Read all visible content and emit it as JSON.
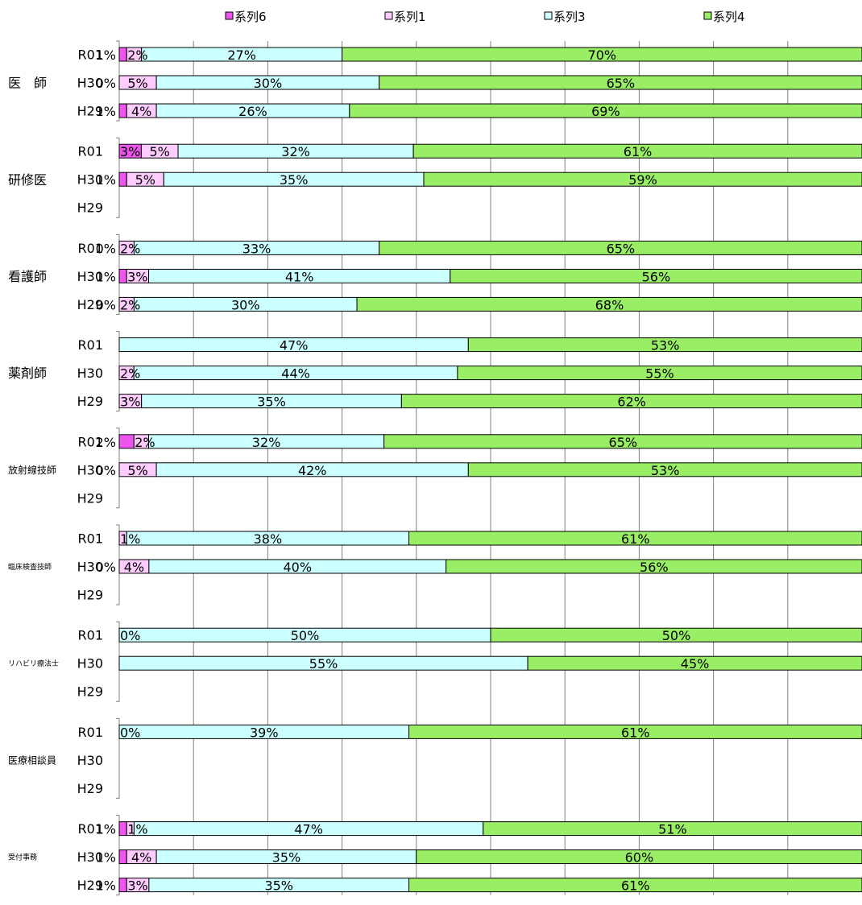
{
  "chart_data": {
    "type": "bar",
    "orientation": "horizontal",
    "stacked": "percent",
    "grid": true,
    "legend_position": "top",
    "series_legend": [
      {
        "key": "s6",
        "name": "系列6",
        "color": "#ee55ee"
      },
      {
        "key": "s1",
        "name": "系列1",
        "color": "#ffccff"
      },
      {
        "key": "s3",
        "name": "系列3",
        "color": "#ccffff"
      },
      {
        "key": "s4",
        "name": "系列4",
        "color": "#99ee66"
      }
    ],
    "groups": [
      {
        "label": "医　師",
        "rows": [
          {
            "label": "R01",
            "values": [
              1,
              2,
              27,
              70
            ],
            "labels": [
              "1%",
              "2%",
              "27%",
              "70%"
            ]
          },
          {
            "label": "H30",
            "values": [
              0,
              5,
              30,
              65
            ],
            "labels": [
              "0%",
              "5%",
              "30%",
              "65%"
            ]
          },
          {
            "label": "H29",
            "values": [
              1,
              4,
              26,
              69
            ],
            "labels": [
              "1%",
              "4%",
              "26%",
              "69%"
            ]
          }
        ]
      },
      {
        "label": "研修医",
        "rows": [
          {
            "label": "R01",
            "values": [
              3,
              5,
              32,
              61
            ],
            "labels": [
              "3%",
              "5%",
              "32%",
              "61%"
            ]
          },
          {
            "label": "H30",
            "values": [
              1,
              5,
              35,
              59
            ],
            "labels": [
              "1%",
              "5%",
              "35%",
              "59%"
            ]
          },
          {
            "label": "H29",
            "values": null,
            "labels": null
          }
        ]
      },
      {
        "label": "看護師",
        "rows": [
          {
            "label": "R01",
            "values": [
              0,
              2,
              33,
              65
            ],
            "labels": [
              "0%",
              "2%",
              "33%",
              "65%"
            ]
          },
          {
            "label": "H30",
            "values": [
              1,
              3,
              41,
              56
            ],
            "labels": [
              "1%",
              "3%",
              "41%",
              "56%"
            ]
          },
          {
            "label": "H29",
            "values": [
              0,
              2,
              30,
              68
            ],
            "labels": [
              "0%",
              "2%",
              "30%",
              "68%"
            ]
          }
        ]
      },
      {
        "label": "薬剤師",
        "rows": [
          {
            "label": "R01",
            "values": [
              0,
              0,
              47,
              53
            ],
            "labels": [
              "",
              "",
              "47%",
              "53%"
            ]
          },
          {
            "label": "H30",
            "values": [
              0,
              2,
              44,
              55
            ],
            "labels": [
              "",
              "2%",
              "44%",
              "55%"
            ]
          },
          {
            "label": "H29",
            "values": [
              0,
              3,
              35,
              62
            ],
            "labels": [
              "",
              "3%",
              "35%",
              "62%"
            ]
          }
        ]
      },
      {
        "label": "放射線技師",
        "rows": [
          {
            "label": "R01",
            "values": [
              2,
              2,
              32,
              65
            ],
            "labels": [
              "2%",
              "2%",
              "32%",
              "65%"
            ]
          },
          {
            "label": "H30",
            "values": [
              0,
              5,
              42,
              53
            ],
            "labels": [
              "0%",
              "5%",
              "42%",
              "53%"
            ]
          },
          {
            "label": "H29",
            "values": null,
            "labels": null
          }
        ]
      },
      {
        "label": "臨床検査技師",
        "rows": [
          {
            "label": "R01",
            "values": [
              0,
              1,
              38,
              61
            ],
            "labels": [
              "",
              "1%",
              "38%",
              "61%"
            ]
          },
          {
            "label": "H30",
            "values": [
              0,
              4,
              40,
              56
            ],
            "labels": [
              "0%",
              "4%",
              "40%",
              "56%"
            ]
          },
          {
            "label": "H29",
            "values": null,
            "labels": null
          }
        ]
      },
      {
        "label": "リハビリ療法士",
        "rows": [
          {
            "label": "R01",
            "values": [
              0,
              0,
              50,
              50
            ],
            "labels": [
              "",
              "0%",
              "50%",
              "50%"
            ]
          },
          {
            "label": "H30",
            "values": [
              0,
              0,
              55,
              45
            ],
            "labels": [
              "",
              "",
              "55%",
              "45%"
            ]
          },
          {
            "label": "H29",
            "values": null,
            "labels": null
          }
        ]
      },
      {
        "label": "医療相談員",
        "rows": [
          {
            "label": "R01",
            "values": [
              0,
              0,
              39,
              61
            ],
            "labels": [
              "",
              "0%",
              "39%",
              "61%"
            ]
          },
          {
            "label": "H30",
            "values": null,
            "labels": null
          },
          {
            "label": "H29",
            "values": null,
            "labels": null
          }
        ]
      },
      {
        "label": "受付事務",
        "rows": [
          {
            "label": "R01",
            "values": [
              1,
              1,
              47,
              51
            ],
            "labels": [
              "1%",
              "1%",
              "47%",
              "51%"
            ]
          },
          {
            "label": "H30",
            "values": [
              1,
              4,
              35,
              60
            ],
            "labels": [
              "1%",
              "4%",
              "35%",
              "60%"
            ]
          },
          {
            "label": "H29",
            "values": [
              1,
              3,
              35,
              61
            ],
            "labels": [
              "1%",
              "3%",
              "35%",
              "61%"
            ]
          }
        ]
      }
    ]
  }
}
